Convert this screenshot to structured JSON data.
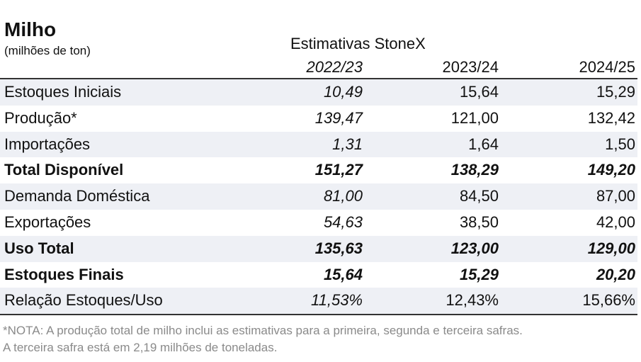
{
  "header": {
    "title": "Milho",
    "subtitle": "(milhões de ton)",
    "source_label": "Estimativas StoneX",
    "years": [
      "2022/23",
      "2023/24",
      "2024/25"
    ]
  },
  "table": {
    "rows": [
      {
        "label": "Estoques Iniciais",
        "values": [
          "10,49",
          "15,64",
          "15,29"
        ],
        "bold": false,
        "shade": true
      },
      {
        "label": "Produção*",
        "values": [
          "139,47",
          "121,00",
          "132,42"
        ],
        "bold": false,
        "shade": false
      },
      {
        "label": "Importações",
        "values": [
          "1,31",
          "1,64",
          "1,50"
        ],
        "bold": false,
        "shade": true
      },
      {
        "label": "Total Disponível",
        "values": [
          "151,27",
          "138,29",
          "149,20"
        ],
        "bold": true,
        "shade": false
      },
      {
        "label": "Demanda Doméstica",
        "values": [
          "81,00",
          "84,50",
          "87,00"
        ],
        "bold": false,
        "shade": true
      },
      {
        "label": "Exportações",
        "values": [
          "54,63",
          "38,50",
          "42,00"
        ],
        "bold": false,
        "shade": false
      },
      {
        "label": "Uso Total",
        "values": [
          "135,63",
          "123,00",
          "129,00"
        ],
        "bold": true,
        "shade": true
      },
      {
        "label": "Estoques Finais",
        "values": [
          "15,64",
          "15,29",
          "20,20"
        ],
        "bold": true,
        "shade": false
      },
      {
        "label": "Relação Estoques/Uso",
        "values": [
          "11,53%",
          "12,43%",
          "15,66%"
        ],
        "bold": false,
        "shade": true
      }
    ]
  },
  "footnote": {
    "line1": "*NOTA: A produção total de milho inclui as estimativas para a primeira, segunda e terceira safras.",
    "line2": "A terceira safra está em 2,19 milhões de toneladas."
  }
}
